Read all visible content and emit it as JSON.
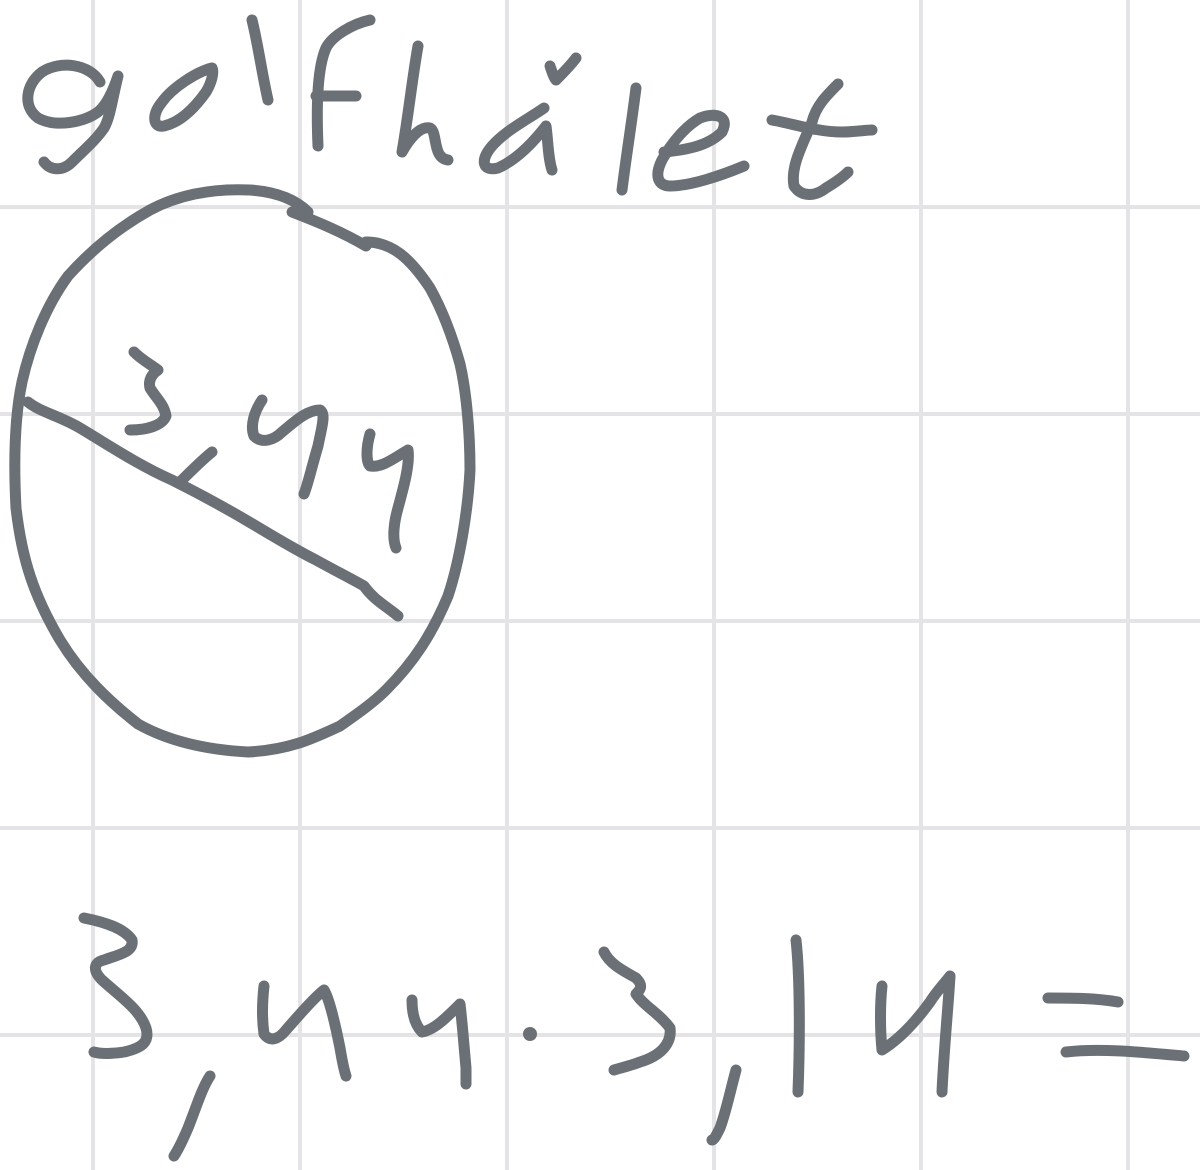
{
  "canvas": {
    "type": "grid-paper-handwriting"
  },
  "notes": {
    "heading": "golfhålet",
    "diameter_label": "3,44",
    "equation": "3,44 · 3,14 ="
  },
  "colors": {
    "ink": "#6b7076",
    "grid": "#e4e4e6",
    "background": "#ffffff"
  }
}
